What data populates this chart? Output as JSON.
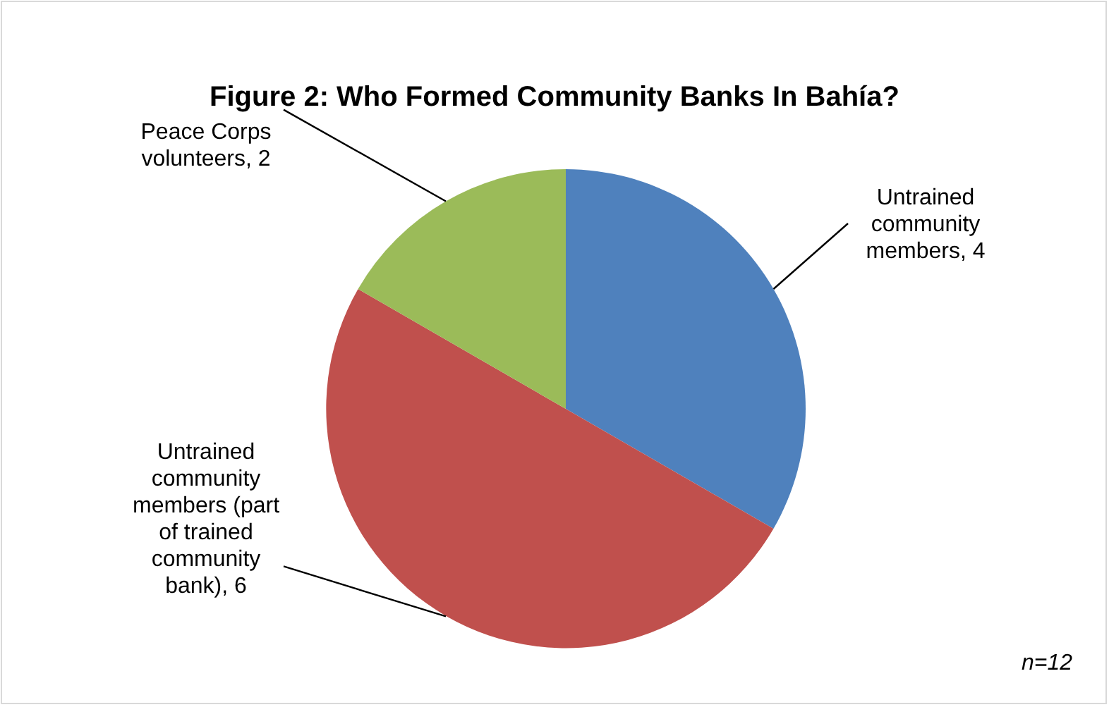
{
  "chart_data": {
    "type": "pie",
    "title": "Figure 2: Who Formed Community Banks In Bahía?",
    "categories": [
      "Untrained community members",
      "Untrained community members (part of trained community bank)",
      "Peace Corps volunteers"
    ],
    "values": [
      4,
      6,
      2
    ],
    "colors": [
      "#4f81bd",
      "#c0504d",
      "#9bbb59"
    ],
    "value_labels": [
      ", 4",
      ", 6",
      ", 2"
    ],
    "legend": false,
    "annotations": [
      "n=12"
    ]
  }
}
